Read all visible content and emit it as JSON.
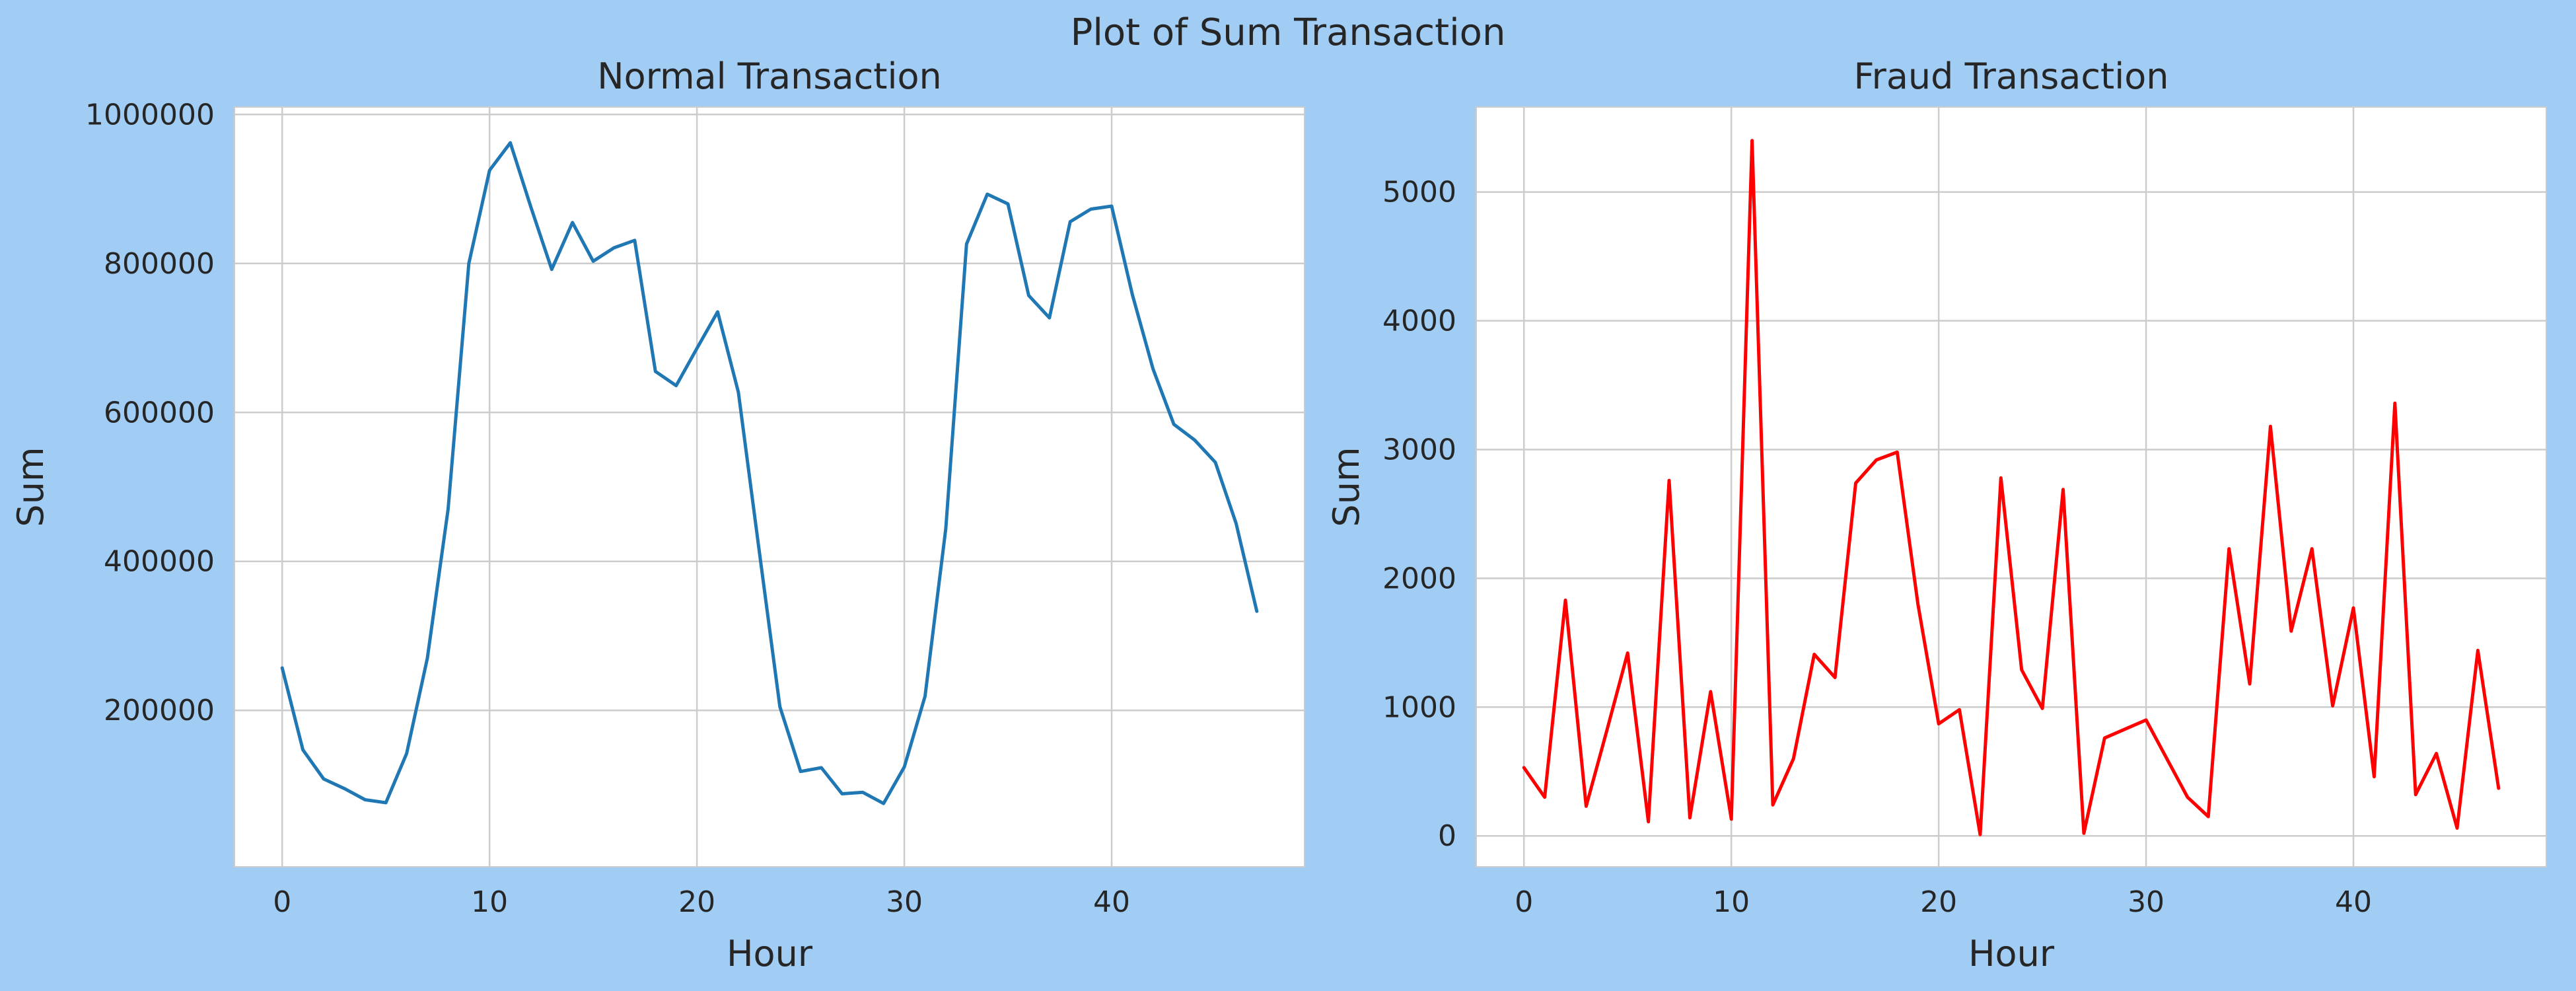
{
  "figure": {
    "suptitle": "Plot of Sum Transaction",
    "background": "#a1cdf5"
  },
  "chart_data": [
    {
      "type": "line",
      "title": "Normal Transaction",
      "xlabel": "Hour",
      "ylabel": "Sum",
      "color": "#1f77b4",
      "grid": true,
      "xlim": [
        -2.3,
        49.3
      ],
      "ylim": [
        -10000,
        1010000
      ],
      "xticks": [
        0,
        10,
        20,
        30,
        40
      ],
      "yticks": [
        200000,
        400000,
        600000,
        800000,
        1000000
      ],
      "x": [
        0,
        1,
        2,
        3,
        4,
        5,
        6,
        7,
        8,
        9,
        10,
        11,
        12,
        13,
        14,
        15,
        16,
        17,
        18,
        19,
        20,
        21,
        22,
        23,
        24,
        25,
        26,
        27,
        28,
        29,
        30,
        31,
        32,
        33,
        34,
        35,
        36,
        37,
        38,
        39,
        40,
        41,
        42,
        43,
        44,
        45,
        46,
        47
      ],
      "y": [
        257000,
        147000,
        108000,
        95000,
        80000,
        76000,
        142000,
        270000,
        470000,
        800000,
        925000,
        962000,
        875000,
        792000,
        855000,
        803000,
        821000,
        831000,
        655000,
        636000,
        686000,
        735000,
        627000,
        415000,
        205000,
        118000,
        123000,
        88000,
        90000,
        75000,
        124000,
        219000,
        444000,
        826000,
        893000,
        880000,
        757000,
        727000,
        856000,
        873000,
        877000,
        758000,
        658000,
        584000,
        563000,
        533000,
        451000,
        333000
      ]
    },
    {
      "type": "line",
      "title": "Fraud Transaction",
      "xlabel": "Hour",
      "ylabel": "Sum",
      "color": "#ff0000",
      "grid": true,
      "xlim": [
        -2.3,
        49.3
      ],
      "ylim": [
        -240,
        5660
      ],
      "xticks": [
        0,
        10,
        20,
        30,
        40
      ],
      "yticks": [
        0,
        1000,
        2000,
        3000,
        4000,
        5000
      ],
      "x": [
        0,
        1,
        2,
        3,
        4,
        5,
        6,
        7,
        8,
        9,
        10,
        11,
        12,
        13,
        14,
        15,
        16,
        17,
        18,
        19,
        20,
        21,
        22,
        23,
        24,
        25,
        26,
        27,
        28,
        29,
        30,
        31,
        32,
        33,
        34,
        35,
        36,
        37,
        38,
        39,
        40,
        41,
        42,
        43,
        44,
        45,
        46,
        47
      ],
      "y": [
        530,
        300,
        1830,
        230,
        820,
        1420,
        110,
        2760,
        140,
        1120,
        130,
        5400,
        240,
        600,
        1410,
        1230,
        2740,
        2920,
        2980,
        1800,
        870,
        980,
        10,
        2780,
        1290,
        990,
        2690,
        20,
        760,
        830,
        900,
        600,
        300,
        150,
        2230,
        1180,
        3180,
        1590,
        2230,
        1010,
        1770,
        460,
        3360,
        320,
        640,
        60,
        1440,
        370
      ]
    }
  ]
}
